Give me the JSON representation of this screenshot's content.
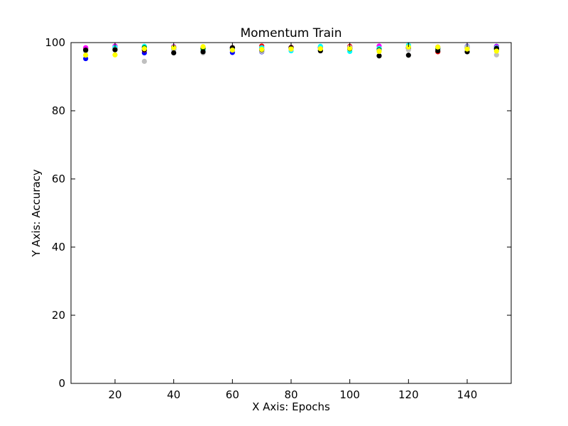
{
  "chart_data": {
    "type": "scatter",
    "title": "Momentum Train",
    "xlabel": "X Axis: Epochs",
    "ylabel": "Y Axis: Accuracy",
    "xlim": [
      5,
      155
    ],
    "ylim": [
      0,
      100
    ],
    "xticks": [
      20,
      40,
      60,
      80,
      100,
      120,
      140
    ],
    "yticks": [
      0,
      20,
      40,
      60,
      80,
      100
    ],
    "grid": false,
    "x": [
      10,
      20,
      30,
      40,
      50,
      60,
      70,
      80,
      90,
      100,
      110,
      120,
      130,
      140,
      150
    ],
    "series": [
      {
        "color": "#0000ff",
        "values": [
          95.3,
          98.5,
          97.0,
          98.0,
          98.2,
          97.1,
          97.3,
          98.3,
          98.5,
          98.7,
          98.2,
          98.6,
          98.2,
          98.9,
          98.9
        ]
      },
      {
        "color": "#ff0000",
        "values": [
          98.2,
          98.3,
          97.8,
          98.4,
          98.4,
          98.5,
          99.0,
          98.6,
          98.5,
          98.9,
          98.2,
          98.3,
          97.3,
          98.4,
          98.2
        ]
      },
      {
        "color": "#ff00ff",
        "values": [
          98.5,
          99.0,
          98.6,
          98.8,
          98.6,
          98.4,
          98.3,
          98.5,
          98.7,
          98.6,
          99.0,
          98.7,
          98.7,
          98.9,
          98.8
        ]
      },
      {
        "color": "#00ffff",
        "values": [
          97.8,
          98.6,
          98.9,
          98.1,
          97.8,
          98.3,
          98.5,
          97.6,
          98.9,
          97.4,
          98.3,
          99.2,
          98.5,
          98.8,
          98.5
        ]
      },
      {
        "color": "#008000",
        "values": [
          97.8,
          98.0,
          98.5,
          98.6,
          98.2,
          98.0,
          97.9,
          98.2,
          97.8,
          98.2,
          97.9,
          98.4,
          98.2,
          98.5,
          98.0
        ]
      },
      {
        "color": "#bfbfbf",
        "values": [
          97.5,
          98.0,
          94.5,
          98.0,
          97.0,
          98.0,
          97.4,
          98.0,
          98.2,
          98.6,
          97.6,
          97.9,
          98.6,
          98.7,
          96.4
        ]
      },
      {
        "color": "#000000",
        "values": [
          97.8,
          97.9,
          97.9,
          97.0,
          97.3,
          98.5,
          97.9,
          98.5,
          97.6,
          98.2,
          96.1,
          96.3,
          97.6,
          97.3,
          98.3
        ]
      },
      {
        "color": "#ffff00",
        "values": [
          96.3,
          96.4,
          98.2,
          98.5,
          98.8,
          97.8,
          98.0,
          98.2,
          98.2,
          98.3,
          97.4,
          98.7,
          98.7,
          98.1,
          97.5
        ]
      }
    ]
  }
}
